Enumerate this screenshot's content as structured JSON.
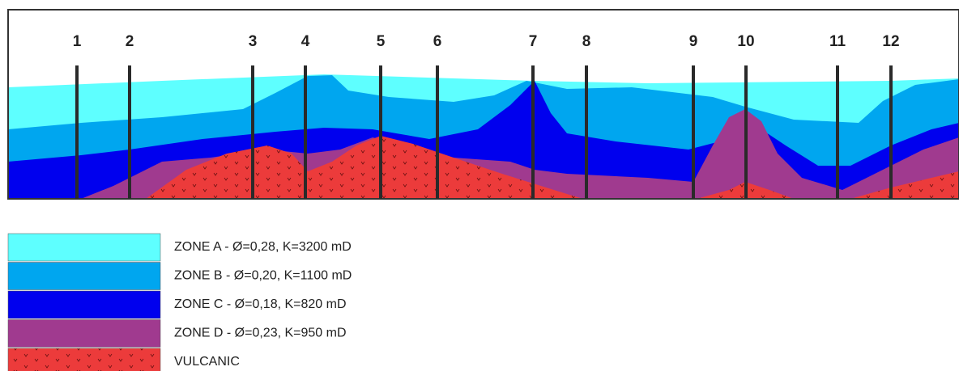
{
  "wells": [
    "1",
    "2",
    "3",
    "4",
    "5",
    "6",
    "7",
    "8",
    "9",
    "10",
    "11",
    "12"
  ],
  "legend": [
    {
      "label": "ZONE A - Ø=0,28, K=3200 mD"
    },
    {
      "label": "ZONE B - Ø=0,20, K=1100 mD"
    },
    {
      "label": "ZONE C - Ø=0,18, K=820 mD"
    },
    {
      "label": "ZONE D - Ø=0,23, K=950 mD"
    },
    {
      "label": "VULCANIC"
    }
  ]
}
